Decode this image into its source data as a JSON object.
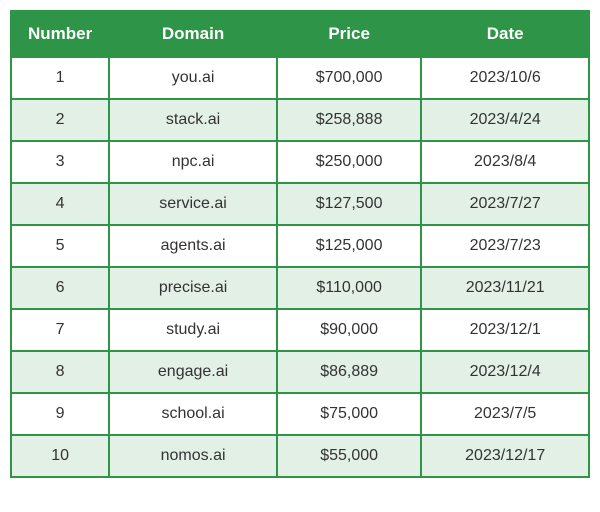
{
  "table": {
    "columns": [
      "Number",
      "Domain",
      "Price",
      "Date"
    ],
    "rows": [
      [
        "1",
        "you.ai",
        "$700,000",
        "2023/10/6"
      ],
      [
        "2",
        "stack.ai",
        "$258,888",
        "2023/4/24"
      ],
      [
        "3",
        "npc.ai",
        "$250,000",
        "2023/8/4"
      ],
      [
        "4",
        "service.ai",
        "$127,500",
        "2023/7/27"
      ],
      [
        "5",
        "agents.ai",
        "$125,000",
        "2023/7/23"
      ],
      [
        "6",
        "precise.ai",
        "$110,000",
        "2023/11/21"
      ],
      [
        "7",
        "study.ai",
        "$90,000",
        "2023/12/1"
      ],
      [
        "8",
        "engage.ai",
        "$86,889",
        "2023/12/4"
      ],
      [
        "9",
        "school.ai",
        "$75,000",
        "2023/7/5"
      ],
      [
        "10",
        "nomos.ai",
        "$55,000",
        "2023/12/17"
      ]
    ],
    "header_bg": "#2e9447",
    "header_text_color": "#ffffff",
    "row_odd_bg": "#ffffff",
    "row_even_bg": "#e2f0e5",
    "border_color": "#2e9447",
    "border_width": 2,
    "header_fontsize": 17,
    "cell_fontsize": 16,
    "font_family": "Arial, sans-serif",
    "column_widths": [
      "17%",
      "29%",
      "25%",
      "29%"
    ],
    "col_classes": [
      "col-number",
      "col-domain",
      "col-price",
      "col-date"
    ]
  }
}
